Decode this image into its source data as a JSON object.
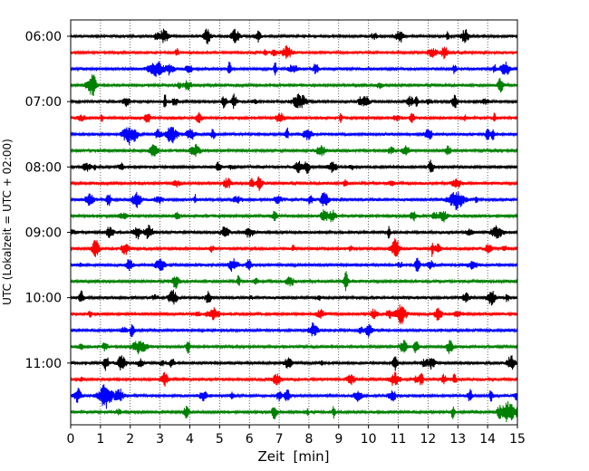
{
  "chart_data": {
    "type": "line",
    "chart_kind": "helicorder seismogram",
    "xlabel": "Zeit  [min]",
    "ylabel": "UTC (Lokalzeit = UTC + 02:00)",
    "xlim": [
      0,
      15
    ],
    "x_ticks": [
      "0",
      "1",
      "2",
      "3",
      "4",
      "5",
      "6",
      "7",
      "8",
      "9",
      "10",
      "11",
      "12",
      "13",
      "14",
      "15"
    ],
    "y_ticks": [
      "06:00",
      "07:00",
      "08:00",
      "09:00",
      "10:00",
      "11:00"
    ],
    "row_interval_minutes": 15,
    "grid": "vertical dotted lines at each minute",
    "trace_colors": [
      "#000000",
      "#ff0000",
      "#0000ff",
      "#008000"
    ],
    "trace_rows": [
      {
        "start": "06:00",
        "color": "#000000"
      },
      {
        "start": "06:15",
        "color": "#ff0000"
      },
      {
        "start": "06:30",
        "color": "#0000ff"
      },
      {
        "start": "06:45",
        "color": "#008000"
      },
      {
        "start": "07:00",
        "color": "#000000"
      },
      {
        "start": "07:15",
        "color": "#ff0000"
      },
      {
        "start": "07:30",
        "color": "#0000ff"
      },
      {
        "start": "07:45",
        "color": "#008000"
      },
      {
        "start": "08:00",
        "color": "#000000"
      },
      {
        "start": "08:15",
        "color": "#ff0000"
      },
      {
        "start": "08:30",
        "color": "#0000ff"
      },
      {
        "start": "08:45",
        "color": "#008000"
      },
      {
        "start": "09:00",
        "color": "#000000"
      },
      {
        "start": "09:15",
        "color": "#ff0000"
      },
      {
        "start": "09:30",
        "color": "#0000ff"
      },
      {
        "start": "09:45",
        "color": "#008000"
      },
      {
        "start": "10:00",
        "color": "#000000"
      },
      {
        "start": "10:15",
        "color": "#ff0000"
      },
      {
        "start": "10:30",
        "color": "#0000ff"
      },
      {
        "start": "10:45",
        "color": "#008000"
      },
      {
        "start": "11:00",
        "color": "#000000"
      },
      {
        "start": "11:15",
        "color": "#ff0000"
      },
      {
        "start": "11:30",
        "color": "#0000ff"
      },
      {
        "start": "11:45",
        "color": "#008000"
      }
    ]
  }
}
